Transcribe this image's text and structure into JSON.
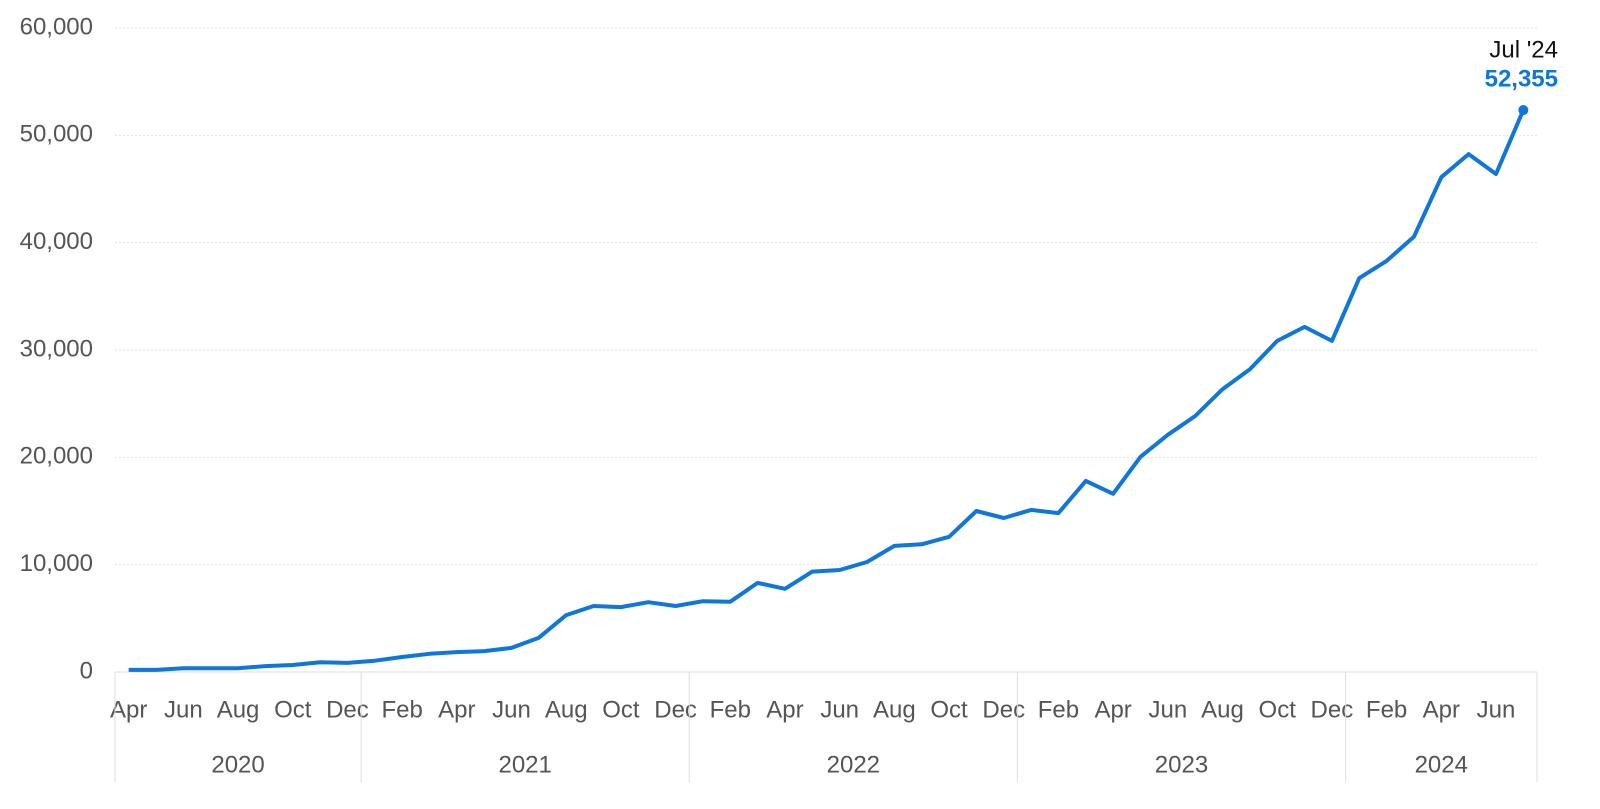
{
  "chart_data": {
    "type": "line",
    "categories": [
      "Apr",
      null,
      "Jun",
      null,
      "Aug",
      null,
      "Oct",
      null,
      "Dec",
      null,
      "Feb",
      null,
      "Apr",
      null,
      "Jun",
      null,
      "Aug",
      null,
      "Oct",
      null,
      "Dec",
      null,
      "Feb",
      null,
      "Apr",
      null,
      "Jun",
      null,
      "Aug",
      null,
      "Oct",
      null,
      "Dec",
      null,
      "Feb",
      null,
      "Apr",
      null,
      "Jun",
      null,
      "Aug",
      null,
      "Oct",
      null,
      "Dec",
      null,
      "Feb",
      null,
      "Apr",
      null,
      "Jun",
      null
    ],
    "year_groups": [
      {
        "label": "2020",
        "start": 0,
        "end": 8
      },
      {
        "label": "2021",
        "start": 9,
        "end": 20
      },
      {
        "label": "2022",
        "start": 21,
        "end": 32
      },
      {
        "label": "2023",
        "start": 33,
        "end": 44
      },
      {
        "label": "2024",
        "start": 45,
        "end": 51
      }
    ],
    "series": [
      {
        "color": "#0f76dc",
        "values": [
          200,
          200,
          350,
          350,
          350,
          550,
          650,
          900,
          850,
          1050,
          1400,
          1700,
          1850,
          1950,
          2250,
          3200,
          5300,
          6150,
          6050,
          6500,
          6150,
          6600,
          6550,
          8300,
          7750,
          9350,
          9500,
          10250,
          11750,
          11900,
          12600,
          15000,
          14350,
          15100,
          14800,
          17800,
          16600,
          20050,
          22100,
          23850,
          26350,
          28200,
          30850,
          32150,
          30850,
          36700,
          38300,
          40550,
          46100,
          48250,
          46400,
          52355
        ],
        "value_labels": [
          null,
          null,
          null,
          null,
          null,
          null,
          null,
          null,
          null,
          null,
          null,
          null,
          null,
          null,
          null,
          null,
          null,
          null,
          null,
          null,
          null,
          null,
          null,
          null,
          null,
          null,
          null,
          null,
          null,
          null,
          null,
          null,
          null,
          null,
          null,
          null,
          null,
          null,
          null,
          null,
          null,
          null,
          null,
          null,
          null,
          null,
          null,
          null,
          null,
          null,
          null,
          "52,355"
        ]
      }
    ],
    "annotation": "Jul '24",
    "ylim": [
      0,
      60000
    ],
    "yticks": [
      0,
      {
        "value": 10000,
        "label": "10,000"
      },
      {
        "value": 20000,
        "label": "20,000"
      },
      {
        "value": 30000,
        "label": "30,000"
      },
      {
        "value": 40000,
        "label": "40,000"
      },
      {
        "value": 50000,
        "label": "50,000"
      },
      {
        "value": 60000,
        "label": "60,000"
      }
    ],
    "grid": true
  }
}
